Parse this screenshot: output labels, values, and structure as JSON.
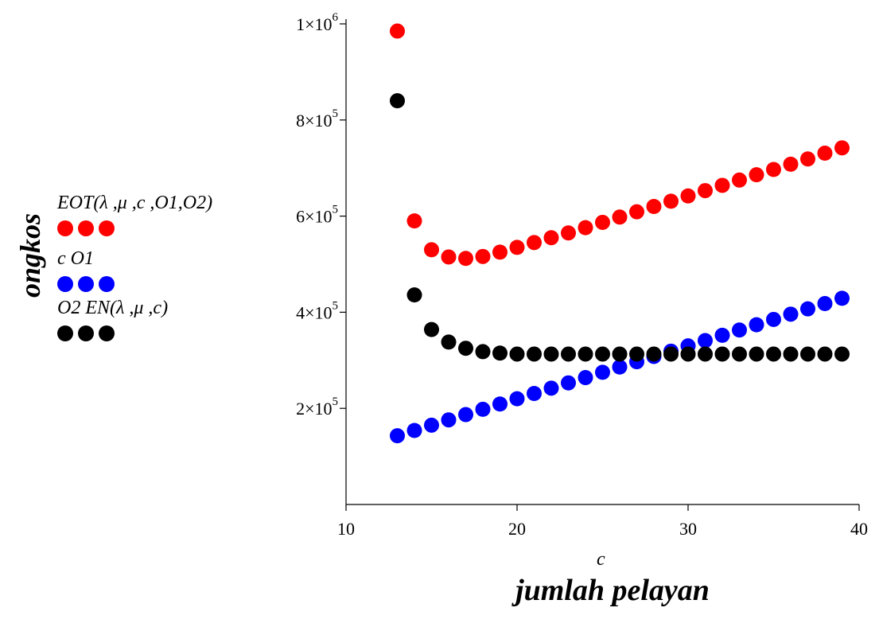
{
  "chart_data": {
    "type": "scatter",
    "xlabel": "c",
    "outer_xlabel": "jumlah pelayan",
    "outer_ylabel": "ongkos",
    "xlim": [
      10,
      40
    ],
    "ylim": [
      0,
      1000000
    ],
    "x_ticks": [
      {
        "value": 10,
        "label": "10"
      },
      {
        "value": 20,
        "label": "20"
      },
      {
        "value": 30,
        "label": "30"
      },
      {
        "value": 40,
        "label": "40"
      }
    ],
    "y_ticks": [
      {
        "value": 200000,
        "mant": "2×10",
        "exp": "5"
      },
      {
        "value": 400000,
        "mant": "4×10",
        "exp": "5"
      },
      {
        "value": 600000,
        "mant": "6×10",
        "exp": "5"
      },
      {
        "value": 800000,
        "mant": "8×10",
        "exp": "5"
      },
      {
        "value": 1000000,
        "mant": "1×10",
        "exp": "6"
      }
    ],
    "legend_position": "left",
    "x": [
      13,
      14,
      15,
      16,
      17,
      18,
      19,
      20,
      21,
      22,
      23,
      24,
      25,
      26,
      27,
      28,
      29,
      30,
      31,
      32,
      33,
      34,
      35,
      36,
      37,
      38,
      39
    ],
    "series": [
      {
        "name": "EOT(λ ,μ ,c ,O1,O2)",
        "color": "#ff0000",
        "values": [
          985000,
          590000,
          530000,
          515000,
          512000,
          516000,
          525000,
          535000,
          545000,
          555000,
          565000,
          576000,
          587000,
          598000,
          609000,
          620000,
          631000,
          642000,
          653000,
          664000,
          675000,
          686000,
          697000,
          708000,
          719000,
          731000,
          742000
        ]
      },
      {
        "name": "c O1",
        "color": "#0000ff",
        "values": [
          143000,
          154000,
          165000,
          176000,
          187000,
          198000,
          209000,
          220000,
          231000,
          242000,
          253000,
          264000,
          275000,
          286000,
          297000,
          308000,
          319000,
          330000,
          341000,
          352000,
          363000,
          374000,
          385000,
          396000,
          407000,
          418000,
          429000
        ]
      },
      {
        "name": "O2 EN(λ ,μ ,c)",
        "color": "#000000",
        "values": [
          840000,
          436000,
          364000,
          338000,
          325000,
          318000,
          315000,
          313000,
          313000,
          313000,
          313000,
          313000,
          313000,
          313000,
          313000,
          313000,
          313000,
          313000,
          313000,
          313000,
          313000,
          313000,
          313000,
          313000,
          313000,
          313000,
          313000
        ]
      }
    ]
  },
  "legend": [
    {
      "label": "EOT(λ ,μ ,c ,O1,O2)",
      "color": "#ff0000"
    },
    {
      "label": "c O1",
      "color": "#0000ff"
    },
    {
      "label": "O2 EN(λ ,μ ,c)",
      "color": "#000000"
    }
  ]
}
